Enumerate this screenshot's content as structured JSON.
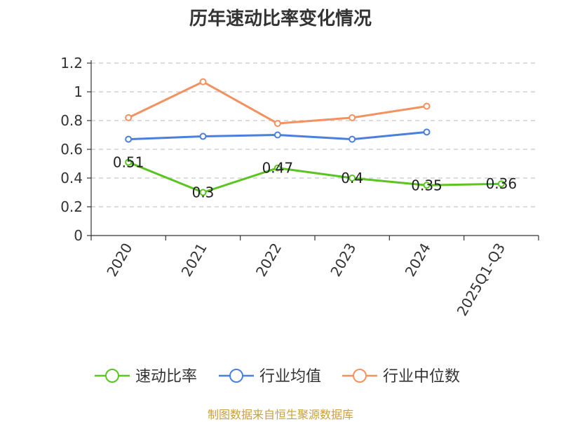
{
  "chart_data": {
    "type": "line",
    "title": "历年速动比率变化情况",
    "categories": [
      "2020",
      "2021",
      "2022",
      "2023",
      "2024",
      "2025Q1-Q3"
    ],
    "ylim": [
      0,
      1.2
    ],
    "yticks": [
      "0",
      "0.2",
      "0.4",
      "0.6",
      "0.8",
      "1",
      "1.2"
    ],
    "grid": true,
    "legend_position": "bottom",
    "series": [
      {
        "name": "速动比率",
        "color": "#5ac421",
        "values": [
          0.51,
          0.3,
          0.47,
          0.4,
          0.35,
          0.36
        ],
        "labels": [
          "0.51",
          "0.3",
          "0.47",
          "0.4",
          "0.35",
          "0.36"
        ]
      },
      {
        "name": "行业均值",
        "color": "#4a7fdc",
        "values": [
          0.67,
          0.69,
          0.7,
          0.67,
          0.72,
          null
        ]
      },
      {
        "name": "行业中位数",
        "color": "#f39260",
        "values": [
          0.82,
          1.07,
          0.78,
          0.82,
          0.9,
          null
        ]
      }
    ]
  },
  "source": "制图数据来自恒生聚源数据库"
}
